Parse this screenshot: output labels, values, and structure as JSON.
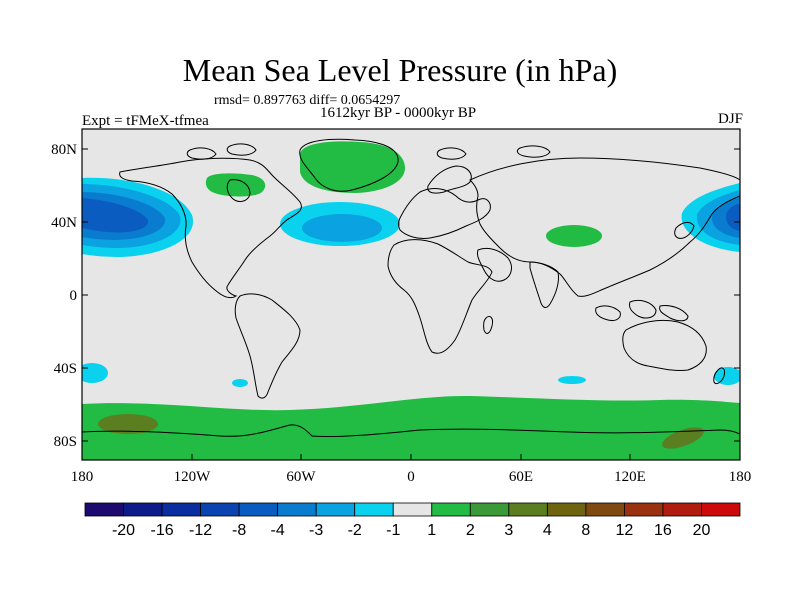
{
  "title": "Mean Sea Level Pressure (in hPa)",
  "stats": "rmsd= 0.897763 diff= 0.0654297",
  "period": "1612kyr BP - 0000kyr BP",
  "experiment": "Expt = tFMeX-tfmea",
  "season": "DJF",
  "lat_ticks": [
    "80N",
    "40N",
    "0",
    "40S",
    "80S"
  ],
  "lon_ticks": [
    "180",
    "120W",
    "60W",
    "0",
    "60E",
    "120E",
    "180"
  ],
  "colorbar": {
    "labels": [
      "-20",
      "-16",
      "-12",
      "-8",
      "-4",
      "-3",
      "-2",
      "-1",
      "1",
      "2",
      "3",
      "4",
      "8",
      "12",
      "16",
      "20"
    ],
    "colors": [
      "#1c0a6e",
      "#0c1a8a",
      "#0a2ea0",
      "#0a44b0",
      "#0a5cc0",
      "#0a7cd0",
      "#0aa2e0",
      "#0ad2ee",
      "#e6e6e6",
      "#22bb44",
      "#3a9a38",
      "#5a7e20",
      "#6e6410",
      "#7e4a10",
      "#9a3210",
      "#b01c10",
      "#cc0a0a"
    ]
  },
  "colors": {
    "land_outline": "#000000",
    "background_field": "#e6e6e6"
  }
}
